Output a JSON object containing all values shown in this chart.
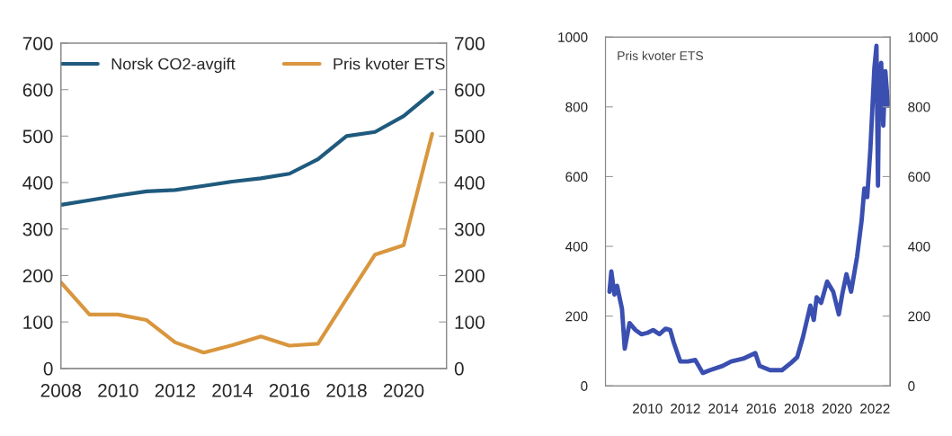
{
  "chart_data": [
    {
      "type": "line",
      "x": [
        2008,
        2009,
        2010,
        2011,
        2012,
        2013,
        2014,
        2015,
        2016,
        2017,
        2018,
        2019,
        2020,
        2021
      ],
      "series": [
        {
          "name": "Norsk CO2-avgift",
          "color": "#1f5a7e",
          "values": [
            352,
            362,
            372,
            381,
            384,
            393,
            402,
            409,
            419,
            450,
            500,
            509,
            543,
            594
          ]
        },
        {
          "name": "Pris kvoter ETS",
          "color": "#d9963e",
          "values": [
            185,
            116,
            116,
            104,
            56,
            34,
            50,
            69,
            49,
            53,
            150,
            245,
            265,
            505
          ]
        }
      ],
      "xlim": [
        2008,
        2021.5
      ],
      "xticks": [
        2008,
        2010,
        2012,
        2014,
        2016,
        2018,
        2020
      ],
      "ylim": [
        0,
        700
      ],
      "yticks": [
        0,
        100,
        200,
        300,
        400,
        500,
        600,
        700
      ],
      "y2lim": [
        0,
        700
      ],
      "y2ticks": [
        0,
        100,
        200,
        300,
        400,
        500,
        600,
        700
      ],
      "legend": "top",
      "grid": false
    },
    {
      "type": "line",
      "x": [
        "2008-01-01",
        "2008-02-05",
        "2008-04-05",
        "2008-05-25",
        "2008-08-28",
        "2008-10-20",
        "2009-01-20",
        "2009-05-15",
        "2009-09-05",
        "2010-01-01",
        "2010-04-20",
        "2010-08-20",
        "2010-12-15",
        "2011-03-15",
        "2011-05-25",
        "2011-09-25",
        "2012-02-15",
        "2012-07-10",
        "2012-12-01",
        "2013-04-20",
        "2013-12-15",
        "2014-06-01",
        "2015-01-20",
        "2015-09-10",
        "2015-12-01",
        "2016-06-20",
        "2017-02-05",
        "2017-07-30",
        "2017-11-25",
        "2018-03-15",
        "2018-08-05",
        "2018-10-10",
        "2018-12-05",
        "2019-03-01",
        "2019-06-25",
        "2019-10-20",
        "2020-02-05",
        "2020-04-10",
        "2020-07-01",
        "2020-09-28",
        "2021-01-20",
        "2021-04-20",
        "2021-06-10",
        "2021-08-05",
        "2021-10-05",
        "2021-12-20",
        "2022-01-30",
        "2022-02-28",
        "2022-03-20",
        "2022-05-01",
        "2022-06-10",
        "2022-07-20",
        "2022-09-10"
      ],
      "series": [
        {
          "name": "Pris kvoter ETS",
          "color": "#3a4fb0",
          "values": [
            270,
            328,
            262,
            287,
            221,
            107,
            180,
            160,
            148,
            152,
            160,
            148,
            164,
            160,
            123,
            70,
            70,
            74,
            37,
            45,
            57,
            70,
            78,
            94,
            57,
            45,
            45,
            66,
            82,
            139,
            230,
            189,
            254,
            238,
            299,
            270,
            205,
            262,
            320,
            270,
            369,
            475,
            566,
            541,
            680,
            910,
            975,
            574,
            844,
            926,
            746,
            902,
            803
          ]
        }
      ],
      "xlim": [
        "2007-10-15",
        "2022-10-20"
      ],
      "xticks": [
        "2010",
        "2012",
        "2014",
        "2016",
        "2018",
        "2020",
        "2022"
      ],
      "ylim": [
        0,
        1000
      ],
      "yticks": [
        0,
        200,
        400,
        600,
        800,
        1000
      ],
      "y2lim": [
        0,
        1000
      ],
      "y2ticks": [
        0,
        200,
        400,
        600,
        800,
        1000
      ],
      "legend": false,
      "grid": false
    }
  ]
}
